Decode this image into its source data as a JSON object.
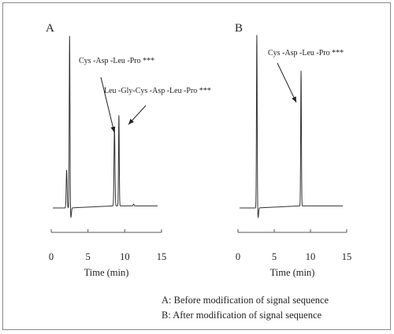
{
  "chart_data": [
    {
      "panel": "A",
      "type": "line",
      "xlabel": "Time  (min)",
      "xticks": [
        0,
        5,
        10,
        15
      ],
      "xlim": [
        0,
        15
      ],
      "peaks": [
        {
          "time": 2.1,
          "height": 0.22
        },
        {
          "time": 2.5,
          "height": 1.0
        },
        {
          "time": 8.6,
          "height": 0.45
        },
        {
          "time": 9.2,
          "height": 0.53
        },
        {
          "time": 11.2,
          "height": 0.01
        }
      ],
      "annotations": [
        {
          "label": "Cys -Asp -Leu -Pro ***",
          "target_time": 8.6
        },
        {
          "label": "Leu -Gly-Cys -Asp -Leu -Pro ***",
          "target_time": 9.2
        }
      ]
    },
    {
      "panel": "B",
      "type": "line",
      "xlabel": "Time  (min)",
      "xticks": [
        0,
        5,
        10,
        15
      ],
      "xlim": [
        0,
        15
      ],
      "peaks": [
        {
          "time": 2.6,
          "height": 1.0
        },
        {
          "time": 8.7,
          "height": 0.78
        }
      ],
      "annotations": [
        {
          "label": "Cys -Asp -Leu -Pro ***",
          "target_time": 8.7
        }
      ]
    }
  ],
  "legend": {
    "a": "A: Before modification of signal sequence",
    "b": "B: After modification of signal sequence"
  }
}
